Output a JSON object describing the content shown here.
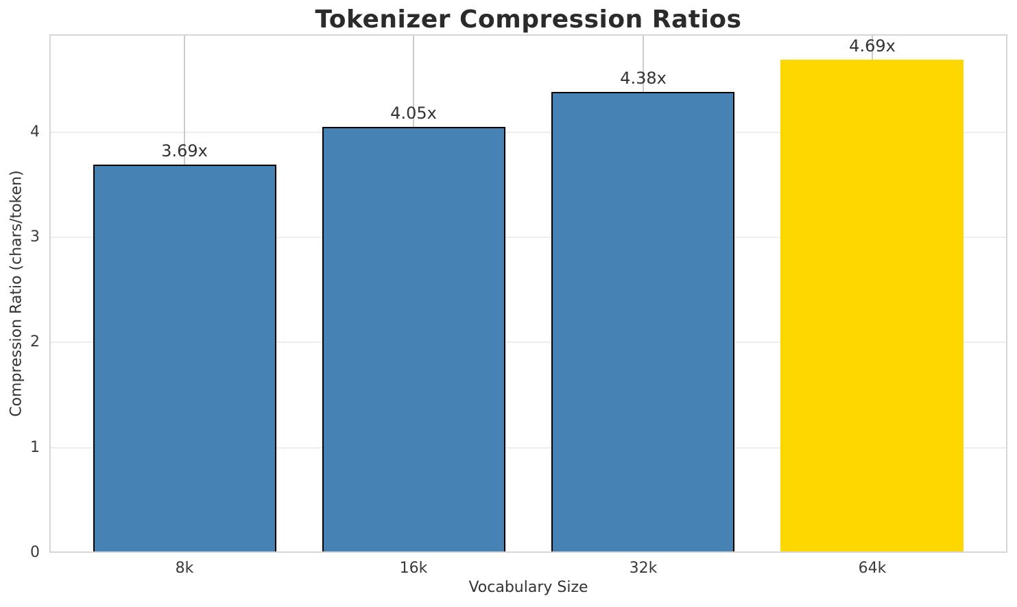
{
  "chart_data": {
    "type": "bar",
    "title": "Tokenizer Compression Ratios",
    "xlabel": "Vocabulary Size",
    "ylabel": "Compression Ratio (chars/token)",
    "categories": [
      "8k",
      "16k",
      "32k",
      "64k"
    ],
    "values": [
      3.69,
      4.05,
      4.38,
      4.69
    ],
    "bar_labels": [
      "3.69x",
      "4.05x",
      "4.38x",
      "4.69x"
    ],
    "bar_colors": [
      "#4682B4",
      "#4682B4",
      "#4682B4",
      "#FFD700"
    ],
    "bar_edge_colors": [
      "#000000",
      "#000000",
      "#000000",
      "none"
    ],
    "yticks": [
      0,
      1,
      2,
      3,
      4
    ],
    "ytick_labels": [
      "0",
      "1",
      "2",
      "3",
      "4"
    ],
    "ylim": [
      0,
      4.93
    ],
    "grid": true,
    "legend": false,
    "colors": {
      "grid_horizontal": "#ededed",
      "grid_vertical": "#cbcbcb",
      "spine": "#d6d6d6",
      "bar_blue": "#4682B4",
      "bar_gold": "#FFD700",
      "text": "#333333",
      "title": "#2b2b2b"
    }
  }
}
